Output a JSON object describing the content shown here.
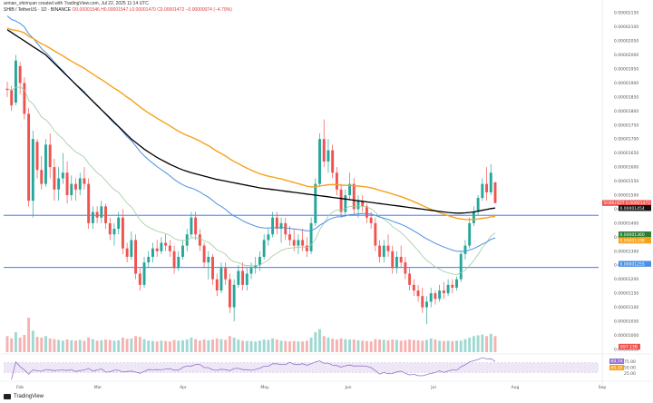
{
  "header": {
    "author_line": "arman_shirinyan created with TradingView.com, Jul 22, 2025 11:14 UTC",
    "pair_line": "SHIB / TetherUS · 1D · BINANCE",
    "ohlc_line": "O0.00001546  H0.00001547  L0.00001470  C0.00001472  −0.00000074 (−4.79%)"
  },
  "brand": {
    "name": "TradingView"
  },
  "colors": {
    "up": "#26a69a",
    "down": "#ef5350",
    "ema200": "#000000",
    "ema100": "#f7a21b",
    "ema50": "#4a90e2",
    "ema20": "#9ccc9a",
    "hline": "#2962ff",
    "rsi": "#9575cd",
    "rsi_band": "#ede7f6"
  },
  "chart_data": {
    "type": "candlestick",
    "symbol": "SHIB / TetherUS",
    "x_labels": [
      "Feb",
      "Mar",
      "Apr",
      "May",
      "Jun",
      "Jul",
      "Aug",
      "Sep"
    ],
    "y_ticks": [
      "0.00002150",
      "0.00002100",
      "0.00002050",
      "0.00002000",
      "0.00001950",
      "0.00001900",
      "0.00001850",
      "0.00001800",
      "0.00001750",
      "0.00001700",
      "0.00001650",
      "0.00001600",
      "0.00001550",
      "0.00001500",
      "0.00001450",
      "0.00001400",
      "0.00001350",
      "0.00001300",
      "0.00001250",
      "0.00001200",
      "0.00001150",
      "0.00001100",
      "0.00001050",
      "0.00001000",
      "0.00000950"
    ],
    "ylim": [
      9.4e-06,
      2.17e-05
    ],
    "horizontal_lines": [
      1.428e-05,
      1.242e-05
    ],
    "price_labels": [
      {
        "text": "SHIBUSDT 0.00001472",
        "value": 1.472e-05,
        "color": "#ef5350"
      },
      {
        "text": "0.00001454",
        "value": 1.454e-05,
        "color": "#111111"
      },
      {
        "text": "0.00001360",
        "value": 1.36e-05,
        "color": "#2e7d32"
      },
      {
        "text": "0.00001338",
        "value": 1.338e-05,
        "color": "#f7a21b"
      },
      {
        "text": "0.00001255",
        "value": 1.255e-05,
        "color": "#4a90e2"
      }
    ],
    "volume_badge": "897.13B",
    "rsi": {
      "ticks": [
        "75.00",
        "50.00",
        "25.00"
      ],
      "badges": [
        "69.74",
        "60.30"
      ],
      "upper": 70,
      "lower": 30
    },
    "candles": [
      [
        1.88e-05,
        1.905e-05,
        1.85e-05,
        1.875e-05
      ],
      [
        1.875e-05,
        1.89e-05,
        1.8e-05,
        1.82e-05
      ],
      [
        1.83e-05,
        2e-05,
        1.82e-05,
        1.98e-05
      ],
      [
        1.96e-05,
        1.975e-05,
        1.86e-05,
        1.9e-05
      ],
      [
        1.9e-05,
        1.92e-05,
        1.77e-05,
        1.79e-05
      ],
      [
        1.79e-05,
        1.81e-05,
        1.46e-05,
        1.48e-05
      ],
      [
        1.48e-05,
        1.73e-05,
        1.42e-05,
        1.7e-05
      ],
      [
        1.69e-05,
        1.7e-05,
        1.56e-05,
        1.59e-05
      ],
      [
        1.59e-05,
        1.64e-05,
        1.52e-05,
        1.54e-05
      ],
      [
        1.54e-05,
        1.7e-05,
        1.53e-05,
        1.68e-05
      ],
      [
        1.68e-05,
        1.72e-05,
        1.56e-05,
        1.6e-05
      ],
      [
        1.6e-05,
        1.63e-05,
        1.48e-05,
        1.52e-05
      ],
      [
        1.52e-05,
        1.6e-05,
        1.48e-05,
        1.56e-05
      ],
      [
        1.56e-05,
        1.65e-05,
        1.54e-05,
        1.58e-05
      ],
      [
        1.58e-05,
        1.62e-05,
        1.47e-05,
        1.5e-05
      ],
      [
        1.5e-05,
        1.57e-05,
        1.48e-05,
        1.54e-05
      ],
      [
        1.54e-05,
        1.56e-05,
        1.48e-05,
        1.52e-05
      ],
      [
        1.52e-05,
        1.58e-05,
        1.5e-05,
        1.56e-05
      ],
      [
        1.56e-05,
        1.6e-05,
        1.52e-05,
        1.54e-05
      ],
      [
        1.54e-05,
        1.56e-05,
        1.38e-05,
        1.4e-05
      ],
      [
        1.4e-05,
        1.46e-05,
        1.38e-05,
        1.44e-05
      ],
      [
        1.44e-05,
        1.46e-05,
        1.4e-05,
        1.42e-05
      ],
      [
        1.42e-05,
        1.48e-05,
        1.4e-05,
        1.46e-05
      ],
      [
        1.46e-05,
        1.47e-05,
        1.38e-05,
        1.4e-05
      ],
      [
        1.4e-05,
        1.42e-05,
        1.34e-05,
        1.36e-05
      ],
      [
        1.36e-05,
        1.4e-05,
        1.32e-05,
        1.38e-05
      ],
      [
        1.38e-05,
        1.44e-05,
        1.36e-05,
        1.42e-05
      ],
      [
        1.42e-05,
        1.45e-05,
        1.29e-05,
        1.31e-05
      ],
      [
        1.31e-05,
        1.33e-05,
        1.26e-05,
        1.28e-05
      ],
      [
        1.28e-05,
        1.37e-05,
        1.27e-05,
        1.34e-05
      ],
      [
        1.34e-05,
        1.36e-05,
        1.2e-05,
        1.22e-05
      ],
      [
        1.22e-05,
        1.24e-05,
        1.16e-05,
        1.18e-05
      ],
      [
        1.18e-05,
        1.28e-05,
        1.17e-05,
        1.26e-05
      ],
      [
        1.26e-05,
        1.3e-05,
        1.24e-05,
        1.28e-05
      ],
      [
        1.28e-05,
        1.33e-05,
        1.26e-05,
        1.31e-05
      ],
      [
        1.31e-05,
        1.34e-05,
        1.28e-05,
        1.3e-05
      ],
      [
        1.3e-05,
        1.35e-05,
        1.29e-05,
        1.33e-05
      ],
      [
        1.33e-05,
        1.36e-05,
        1.3e-05,
        1.32e-05
      ],
      [
        1.32e-05,
        1.34e-05,
        1.28e-05,
        1.3e-05
      ],
      [
        1.3e-05,
        1.32e-05,
        1.22e-05,
        1.24e-05
      ],
      [
        1.24e-05,
        1.3e-05,
        1.23e-05,
        1.28e-05
      ],
      [
        1.28e-05,
        1.34e-05,
        1.27e-05,
        1.32e-05
      ],
      [
        1.32e-05,
        1.38e-05,
        1.3e-05,
        1.36e-05
      ],
      [
        1.36e-05,
        1.44e-05,
        1.35e-05,
        1.42e-05
      ],
      [
        1.42e-05,
        1.44e-05,
        1.34e-05,
        1.36e-05
      ],
      [
        1.36e-05,
        1.38e-05,
        1.3e-05,
        1.32e-05
      ],
      [
        1.32e-05,
        1.33e-05,
        1.24e-05,
        1.26e-05
      ],
      [
        1.26e-05,
        1.3e-05,
        1.2e-05,
        1.28e-05
      ],
      [
        1.28e-05,
        1.29e-05,
        1.18e-05,
        1.2e-05
      ],
      [
        1.2e-05,
        1.22e-05,
        1.14e-05,
        1.16e-05
      ],
      [
        1.16e-05,
        1.26e-05,
        1.15e-05,
        1.24e-05
      ],
      [
        1.24e-05,
        1.26e-05,
        1.18e-05,
        1.2e-05
      ],
      [
        1.2e-05,
        1.22e-05,
        1.08e-05,
        1.1e-05
      ],
      [
        1.1e-05,
        1.2e-05,
        1.05e-05,
        1.18e-05
      ],
      [
        1.18e-05,
        1.25e-05,
        1.17e-05,
        1.23e-05
      ],
      [
        1.23e-05,
        1.26e-05,
        1.16e-05,
        1.18e-05
      ],
      [
        1.18e-05,
        1.24e-05,
        1.16e-05,
        1.22e-05
      ],
      [
        1.22e-05,
        1.26e-05,
        1.2e-05,
        1.24e-05
      ],
      [
        1.24e-05,
        1.28e-05,
        1.22e-05,
        1.25e-05
      ],
      [
        1.25e-05,
        1.3e-05,
        1.23e-05,
        1.28e-05
      ],
      [
        1.28e-05,
        1.36e-05,
        1.27e-05,
        1.34e-05
      ],
      [
        1.34e-05,
        1.38e-05,
        1.32e-05,
        1.36e-05
      ],
      [
        1.36e-05,
        1.44e-05,
        1.35e-05,
        1.42e-05
      ],
      [
        1.42e-05,
        1.44e-05,
        1.36e-05,
        1.38e-05
      ],
      [
        1.38e-05,
        1.42e-05,
        1.33e-05,
        1.4e-05
      ],
      [
        1.4e-05,
        1.42e-05,
        1.34e-05,
        1.36e-05
      ],
      [
        1.36e-05,
        1.39e-05,
        1.32e-05,
        1.34e-05
      ],
      [
        1.34e-05,
        1.38e-05,
        1.3e-05,
        1.32e-05
      ],
      [
        1.32e-05,
        1.36e-05,
        1.29e-05,
        1.34e-05
      ],
      [
        1.34e-05,
        1.38e-05,
        1.3e-05,
        1.32e-05
      ],
      [
        1.32e-05,
        1.35e-05,
        1.28e-05,
        1.3e-05
      ],
      [
        1.3e-05,
        1.42e-05,
        1.29e-05,
        1.4e-05
      ],
      [
        1.4e-05,
        1.56e-05,
        1.39e-05,
        1.54e-05
      ],
      [
        1.54e-05,
        1.72e-05,
        1.53e-05,
        1.7e-05
      ],
      [
        1.7e-05,
        1.77e-05,
        1.6e-05,
        1.62e-05
      ],
      [
        1.62e-05,
        1.7e-05,
        1.58e-05,
        1.66e-05
      ],
      [
        1.66e-05,
        1.68e-05,
        1.56e-05,
        1.58e-05
      ],
      [
        1.58e-05,
        1.6e-05,
        1.5e-05,
        1.52e-05
      ],
      [
        1.52e-05,
        1.54e-05,
        1.42e-05,
        1.44e-05
      ],
      [
        1.44e-05,
        1.52e-05,
        1.43e-05,
        1.5e-05
      ],
      [
        1.5e-05,
        1.58e-05,
        1.48e-05,
        1.54e-05
      ],
      [
        1.54e-05,
        1.56e-05,
        1.43e-05,
        1.45e-05
      ],
      [
        1.45e-05,
        1.5e-05,
        1.42e-05,
        1.48e-05
      ],
      [
        1.48e-05,
        1.5e-05,
        1.44e-05,
        1.46e-05
      ],
      [
        1.46e-05,
        1.47e-05,
        1.4e-05,
        1.42e-05
      ],
      [
        1.42e-05,
        1.44e-05,
        1.38e-05,
        1.4e-05
      ],
      [
        1.4e-05,
        1.42e-05,
        1.3e-05,
        1.32e-05
      ],
      [
        1.32e-05,
        1.34e-05,
        1.26e-05,
        1.28e-05
      ],
      [
        1.28e-05,
        1.34e-05,
        1.26e-05,
        1.32e-05
      ],
      [
        1.32e-05,
        1.36e-05,
        1.28e-05,
        1.3e-05
      ],
      [
        1.3e-05,
        1.32e-05,
        1.22e-05,
        1.24e-05
      ],
      [
        1.24e-05,
        1.3e-05,
        1.22e-05,
        1.28e-05
      ],
      [
        1.28e-05,
        1.32e-05,
        1.24e-05,
        1.26e-05
      ],
      [
        1.26e-05,
        1.28e-05,
        1.2e-05,
        1.22e-05
      ],
      [
        1.22e-05,
        1.24e-05,
        1.16e-05,
        1.18e-05
      ],
      [
        1.18e-05,
        1.2e-05,
        1.14e-05,
        1.16e-05
      ],
      [
        1.16e-05,
        1.18e-05,
        1.12e-05,
        1.14e-05
      ],
      [
        1.14e-05,
        1.17e-05,
        1.08e-05,
        1.1e-05
      ],
      [
        1.1e-05,
        1.14e-05,
        1.04e-05,
        1.12e-05
      ],
      [
        1.12e-05,
        1.17e-05,
        1.1e-05,
        1.15e-05
      ],
      [
        1.15e-05,
        1.16e-05,
        1.11e-05,
        1.13e-05
      ],
      [
        1.13e-05,
        1.18e-05,
        1.12e-05,
        1.16e-05
      ],
      [
        1.16e-05,
        1.19e-05,
        1.13e-05,
        1.15e-05
      ],
      [
        1.15e-05,
        1.2e-05,
        1.14e-05,
        1.18e-05
      ],
      [
        1.18e-05,
        1.2e-05,
        1.15e-05,
        1.17e-05
      ],
      [
        1.17e-05,
        1.21e-05,
        1.16e-05,
        1.2e-05
      ],
      [
        1.2e-05,
        1.3e-05,
        1.19e-05,
        1.29e-05
      ],
      [
        1.29e-05,
        1.34e-05,
        1.27e-05,
        1.32e-05
      ],
      [
        1.32e-05,
        1.42e-05,
        1.31e-05,
        1.4e-05
      ],
      [
        1.4e-05,
        1.46e-05,
        1.39e-05,
        1.44e-05
      ],
      [
        1.44e-05,
        1.5e-05,
        1.43e-05,
        1.49e-05
      ],
      [
        1.49e-05,
        1.56e-05,
        1.48e-05,
        1.54e-05
      ],
      [
        1.54e-05,
        1.6e-05,
        1.48e-05,
        1.51e-05
      ],
      [
        1.51e-05,
        1.61e-05,
        1.5e-05,
        1.58e-05
      ],
      [
        1.546e-05,
        1.547e-05,
        1.47e-05,
        1.472e-05
      ]
    ],
    "volume": [
      420,
      360,
      520,
      380,
      450,
      900,
      560,
      400,
      380,
      420,
      360,
      340,
      320,
      300,
      330,
      310,
      300,
      320,
      300,
      380,
      340,
      300,
      310,
      330,
      320,
      300,
      310,
      380,
      350,
      360,
      420,
      400,
      340,
      300,
      290,
      280,
      300,
      290,
      280,
      320,
      300,
      310,
      330,
      380,
      340,
      300,
      330,
      310,
      330,
      360,
      340,
      320,
      420,
      380,
      330,
      300,
      290,
      290,
      280,
      300,
      330,
      320,
      360,
      330,
      300,
      290,
      280,
      290,
      280,
      280,
      300,
      380,
      520,
      600,
      420,
      380,
      350,
      330,
      360,
      340,
      330,
      330,
      310,
      300,
      290,
      280,
      340,
      330,
      320,
      310,
      330,
      320,
      300,
      310,
      330,
      320,
      310,
      300,
      320,
      360,
      330,
      300,
      290,
      300,
      290,
      300,
      300,
      340,
      380,
      420,
      440,
      460,
      420,
      480,
      420
    ],
    "ema200": [
      2.09e-05,
      2.08e-05,
      2.07e-05,
      2.06e-05,
      2.05e-05,
      2.04e-05,
      2.03e-05,
      2.02e-05,
      2.01e-05,
      2e-05,
      1.985e-05,
      1.97e-05,
      1.955e-05,
      1.94e-05,
      1.925e-05,
      1.91e-05,
      1.895e-05,
      1.88e-05,
      1.865e-05,
      1.85e-05,
      1.835e-05,
      1.82e-05,
      1.805e-05,
      1.79e-05,
      1.775e-05,
      1.76e-05,
      1.745e-05,
      1.73e-05,
      1.715e-05,
      1.7e-05,
      1.688e-05,
      1.676e-05,
      1.664e-05,
      1.654e-05,
      1.644e-05,
      1.634e-05,
      1.626e-05,
      1.618e-05,
      1.61e-05,
      1.603e-05,
      1.596e-05,
      1.59e-05,
      1.585e-05,
      1.58e-05,
      1.576e-05,
      1.572e-05,
      1.568e-05,
      1.564e-05,
      1.56e-05,
      1.556e-05,
      1.553e-05,
      1.55e-05,
      1.547e-05,
      1.544e-05,
      1.541e-05,
      1.538e-05,
      1.535e-05,
      1.532e-05,
      1.529e-05,
      1.526e-05,
      1.524e-05,
      1.522e-05,
      1.52e-05,
      1.518e-05,
      1.516e-05,
      1.514e-05,
      1.512e-05,
      1.51e-05,
      1.508e-05,
      1.506e-05,
      1.504e-05,
      1.502e-05,
      1.5e-05,
      1.498e-05,
      1.496e-05,
      1.494e-05,
      1.492e-05,
      1.49e-05,
      1.488e-05,
      1.486e-05,
      1.484e-05,
      1.482e-05,
      1.48e-05,
      1.478e-05,
      1.476e-05,
      1.474e-05,
      1.472e-05,
      1.47e-05,
      1.468e-05,
      1.466e-05,
      1.464e-05,
      1.462e-05,
      1.46e-05,
      1.458e-05,
      1.456e-05,
      1.454e-05,
      1.452e-05,
      1.45e-05,
      1.448e-05,
      1.446e-05,
      1.444e-05,
      1.442e-05,
      1.44e-05,
      1.438e-05,
      1.437e-05,
      1.436e-05,
      1.436e-05,
      1.437e-05,
      1.438e-05,
      1.44e-05,
      1.443e-05,
      1.446e-05,
      1.449e-05,
      1.452e-05,
      1.454e-05
    ]
  }
}
